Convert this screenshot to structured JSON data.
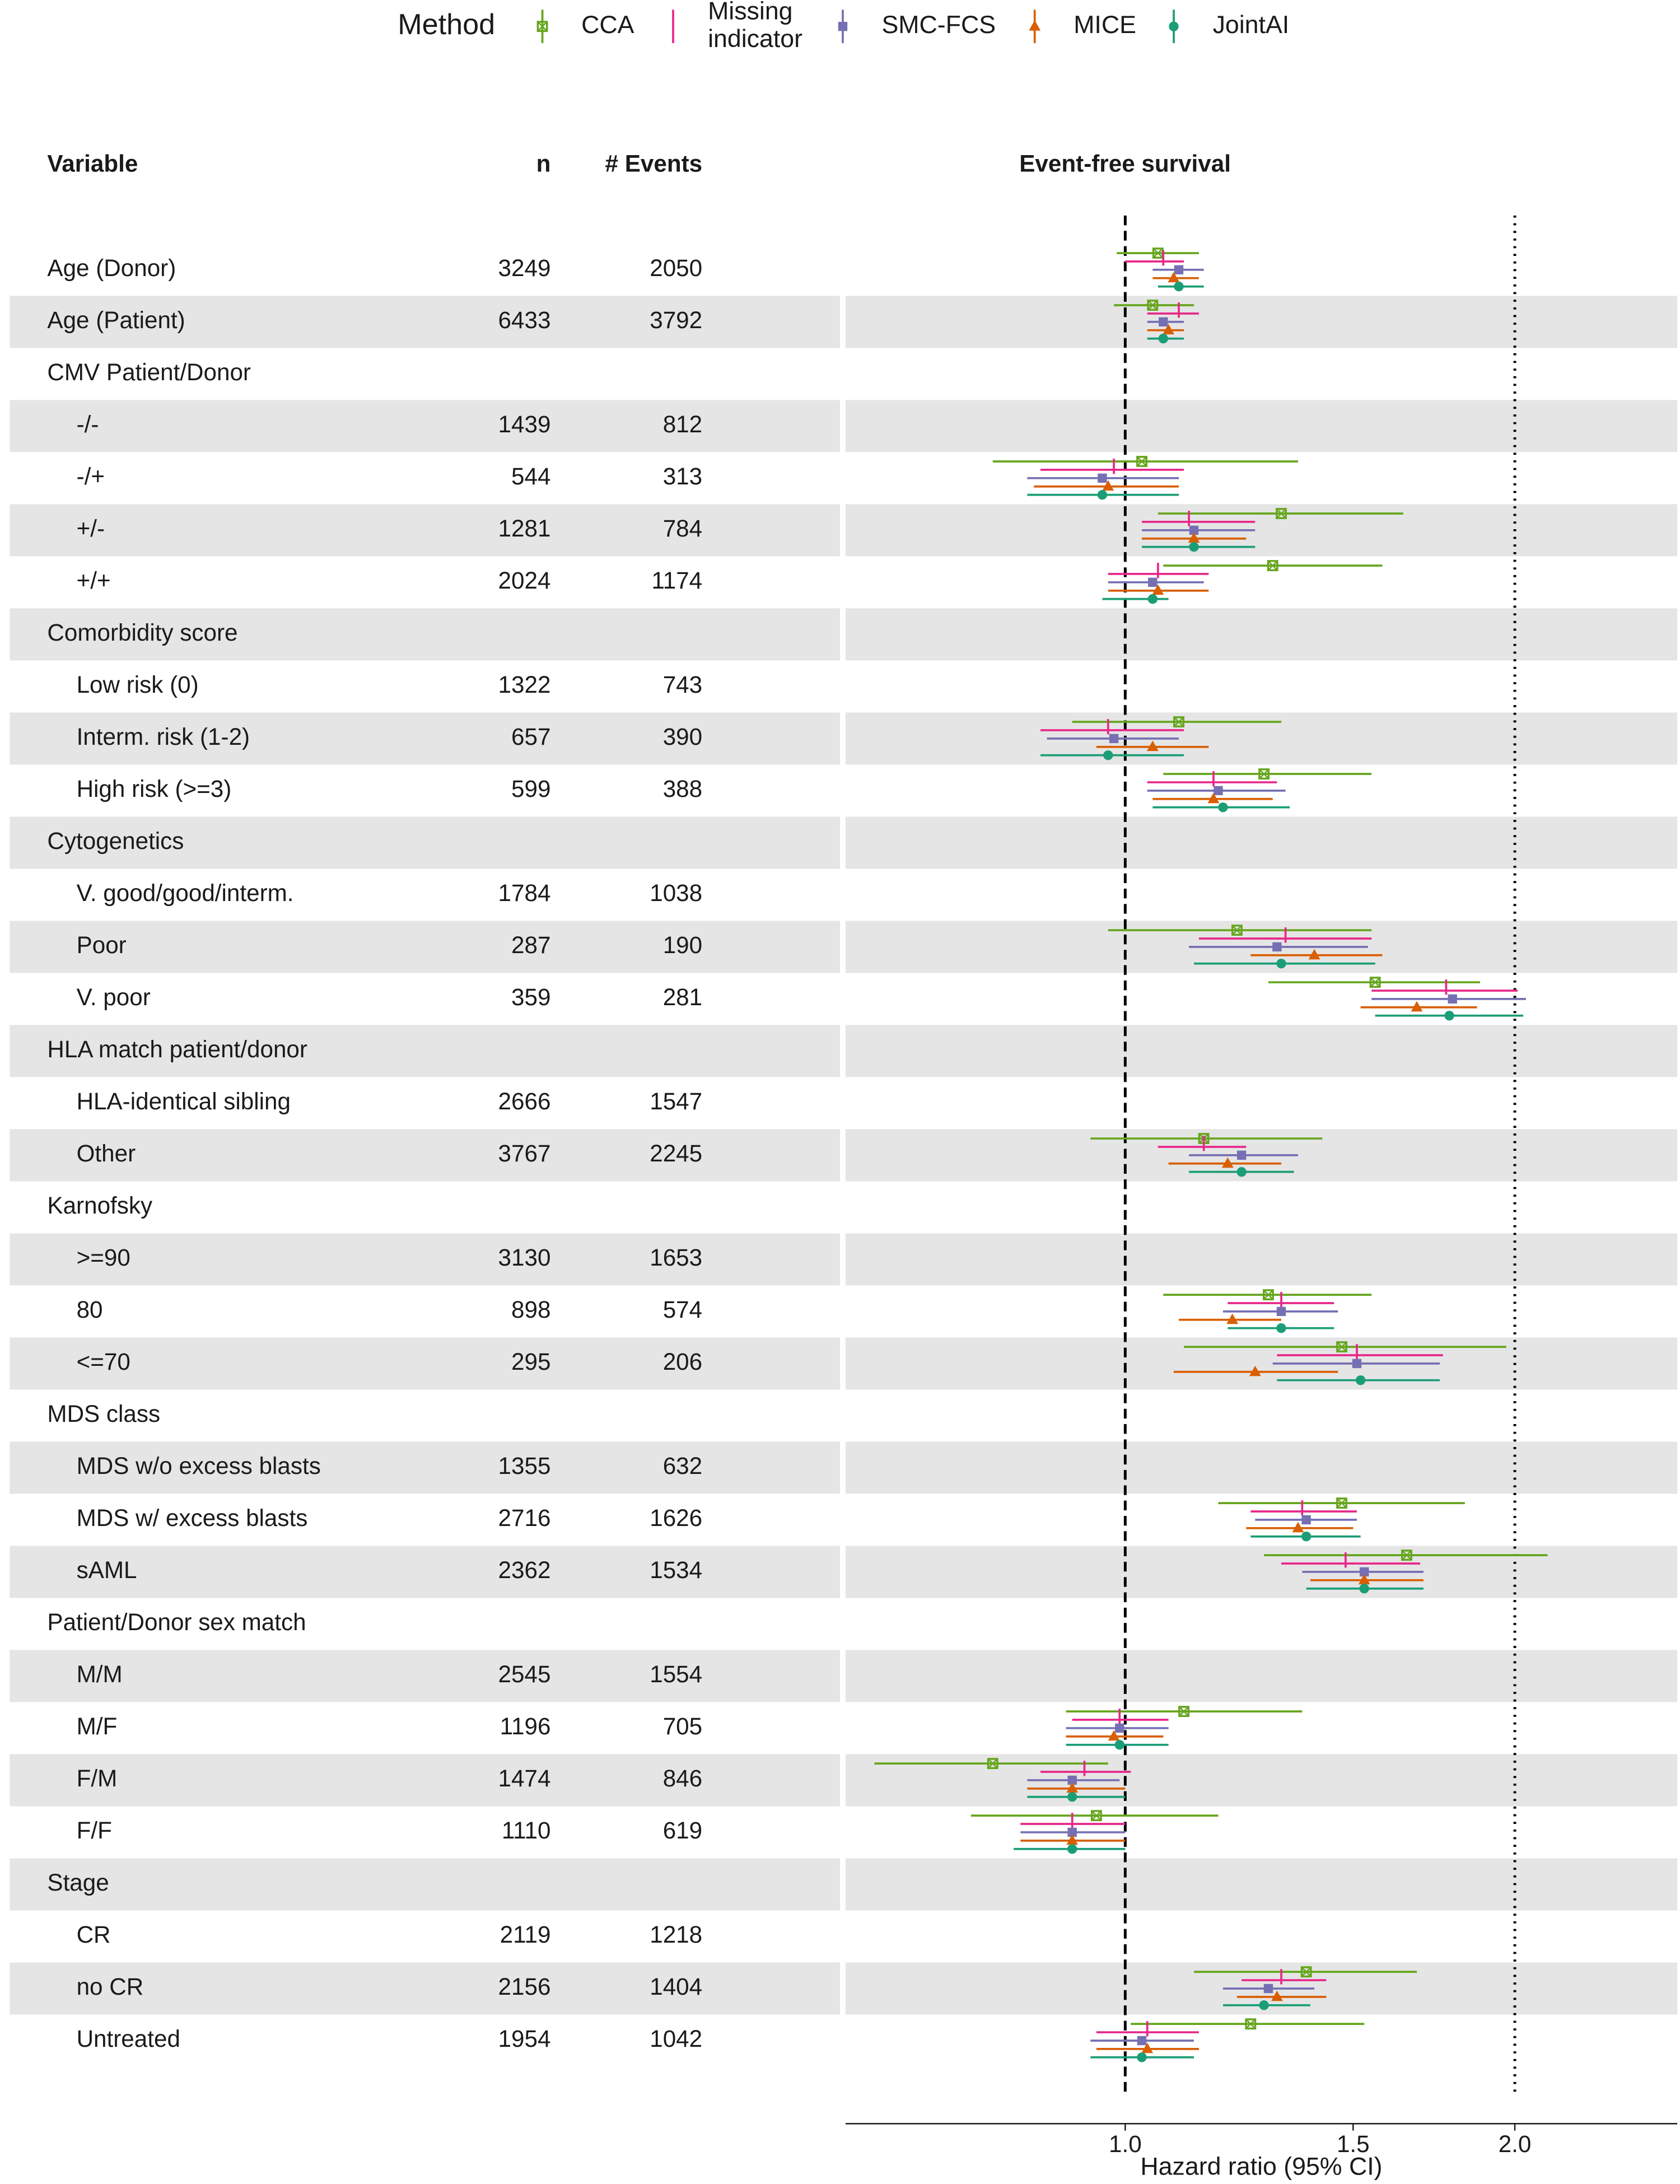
{
  "chart_data": {
    "type": "forest",
    "legend_title": "Method",
    "columns": [
      "Variable",
      "n",
      "# Events"
    ],
    "plot_title": "Event-free survival",
    "x_label": "Hazard ratio (95% CI)",
    "xscale": "log",
    "xlim": [
      0.608,
      2.67
    ],
    "xticks": [
      {
        "value": 1,
        "label": "1.0"
      },
      {
        "value": 1.5,
        "label": "1.5"
      },
      {
        "value": 2,
        "label": "2.0"
      }
    ],
    "reference_lines": [
      {
        "value": 1,
        "style": "dashed"
      },
      {
        "value": 2,
        "style": "dotted"
      }
    ],
    "striped_rows": true,
    "labels": [
      "Age (Donor)",
      "Age (Patient)",
      "CMV Patient/Donor",
      "-/-",
      "-/+",
      "+/-",
      "+/+",
      "Comorbidity score",
      "Low risk (0)",
      "Interm. risk (1-2)",
      "High risk (>=3)",
      "Cytogenetics",
      "V. good/good/interm.",
      "Poor",
      "V. poor",
      "HLA match patient/donor",
      "HLA-identical sibling",
      "Other",
      "Karnofsky",
      ">=90",
      "80",
      "<=70",
      "MDS class",
      "MDS w/o excess blasts",
      "MDS w/ excess blasts",
      "sAML",
      "Patient/Donor sex match",
      "M/M",
      "M/F",
      "F/M",
      "F/F",
      "Stage",
      "CR",
      "no CR",
      "Untreated"
    ],
    "n": [
      3249,
      6433,
      null,
      1439,
      544,
      1281,
      2024,
      null,
      1322,
      657,
      599,
      null,
      1784,
      287,
      359,
      null,
      2666,
      3767,
      null,
      3130,
      898,
      295,
      null,
      1355,
      2716,
      2362,
      null,
      2545,
      1196,
      1474,
      1110,
      null,
      2119,
      2156,
      1954
    ],
    "events": [
      2050,
      3792,
      null,
      812,
      313,
      784,
      1174,
      null,
      743,
      390,
      388,
      null,
      1038,
      190,
      281,
      null,
      1547,
      2245,
      null,
      1653,
      574,
      206,
      null,
      632,
      1626,
      1534,
      null,
      1554,
      705,
      846,
      619,
      null,
      1218,
      1404,
      1042
    ],
    "series": [
      {
        "name": "CCA",
        "color": "#66a61e",
        "marker": "boxed-square",
        "values": [
          1.06,
          1.05,
          null,
          null,
          1.03,
          1.32,
          1.3,
          null,
          null,
          1.1,
          1.28,
          null,
          null,
          1.22,
          1.56,
          null,
          null,
          1.15,
          null,
          null,
          1.29,
          1.47,
          null,
          null,
          1.47,
          1.65,
          null,
          null,
          1.11,
          0.79,
          0.95,
          null,
          null,
          1.38,
          1.25
        ],
        "lower": [
          0.985,
          0.98,
          null,
          null,
          0.79,
          1.06,
          1.07,
          null,
          null,
          0.91,
          1.07,
          null,
          null,
          0.97,
          1.29,
          null,
          null,
          0.94,
          null,
          null,
          1.07,
          1.11,
          null,
          null,
          1.18,
          1.28,
          null,
          null,
          0.9,
          0.64,
          0.76,
          null,
          null,
          1.13,
          1.01
        ],
        "upper": [
          1.14,
          1.13,
          null,
          null,
          1.36,
          1.64,
          1.58,
          null,
          null,
          1.32,
          1.55,
          null,
          null,
          1.55,
          1.88,
          null,
          null,
          1.42,
          null,
          null,
          1.55,
          1.97,
          null,
          null,
          1.83,
          2.12,
          null,
          null,
          1.37,
          0.97,
          1.18,
          null,
          null,
          1.68,
          1.53
        ]
      },
      {
        "name": "Missing indicator",
        "color": "#e7298a",
        "marker": "bar",
        "values": [
          1.07,
          1.1,
          null,
          null,
          0.98,
          1.12,
          1.06,
          null,
          null,
          0.97,
          1.17,
          null,
          null,
          1.33,
          1.77,
          null,
          null,
          1.15,
          null,
          null,
          1.32,
          1.51,
          null,
          null,
          1.37,
          1.48,
          null,
          null,
          0.99,
          0.93,
          0.91,
          null,
          null,
          1.32,
          1.04
        ],
        "lower": [
          1.0,
          1.04,
          null,
          null,
          0.86,
          1.03,
          0.97,
          null,
          null,
          0.86,
          1.04,
          null,
          null,
          1.14,
          1.55,
          null,
          null,
          1.06,
          null,
          null,
          1.2,
          1.31,
          null,
          null,
          1.25,
          1.32,
          null,
          null,
          0.91,
          0.86,
          0.83,
          null,
          null,
          1.23,
          0.95
        ],
        "upper": [
          1.11,
          1.14,
          null,
          null,
          1.11,
          1.26,
          1.16,
          null,
          null,
          1.11,
          1.31,
          null,
          null,
          1.55,
          2.01,
          null,
          null,
          1.24,
          null,
          null,
          1.45,
          1.76,
          null,
          null,
          1.51,
          1.69,
          null,
          null,
          1.08,
          1.01,
          1.0,
          null,
          null,
          1.43,
          1.14
        ]
      },
      {
        "name": "SMC-FCS",
        "color": "#7570b3",
        "marker": "square",
        "values": [
          1.1,
          1.07,
          null,
          null,
          0.96,
          1.13,
          1.05,
          null,
          null,
          0.98,
          1.18,
          null,
          null,
          1.31,
          1.79,
          null,
          null,
          1.23,
          null,
          null,
          1.32,
          1.51,
          null,
          null,
          1.38,
          1.53,
          null,
          null,
          0.99,
          0.91,
          0.91,
          null,
          null,
          1.29,
          1.03
        ],
        "lower": [
          1.05,
          1.04,
          null,
          null,
          0.84,
          1.03,
          0.97,
          null,
          null,
          0.87,
          1.04,
          null,
          null,
          1.12,
          1.55,
          null,
          null,
          1.12,
          null,
          null,
          1.19,
          1.3,
          null,
          null,
          1.26,
          1.37,
          null,
          null,
          0.9,
          0.84,
          0.83,
          null,
          null,
          1.19,
          0.94
        ],
        "upper": [
          1.15,
          1.11,
          null,
          null,
          1.1,
          1.26,
          1.15,
          null,
          null,
          1.1,
          1.33,
          null,
          null,
          1.54,
          2.04,
          null,
          null,
          1.36,
          null,
          null,
          1.46,
          1.75,
          null,
          null,
          1.51,
          1.7,
          null,
          null,
          1.08,
          0.99,
          1.0,
          null,
          null,
          1.4,
          1.13
        ]
      },
      {
        "name": "MICE",
        "color": "#d95f02",
        "marker": "triangle",
        "values": [
          1.09,
          1.08,
          null,
          null,
          0.97,
          1.13,
          1.06,
          null,
          null,
          1.05,
          1.17,
          null,
          null,
          1.4,
          1.68,
          null,
          null,
          1.2,
          null,
          null,
          1.21,
          1.26,
          null,
          null,
          1.36,
          1.53,
          null,
          null,
          0.98,
          0.91,
          0.91,
          null,
          null,
          1.31,
          1.04
        ],
        "lower": [
          1.05,
          1.04,
          null,
          null,
          0.85,
          1.03,
          0.97,
          null,
          null,
          0.95,
          1.05,
          null,
          null,
          1.25,
          1.52,
          null,
          null,
          1.08,
          null,
          null,
          1.1,
          1.09,
          null,
          null,
          1.24,
          1.39,
          null,
          null,
          0.9,
          0.84,
          0.83,
          null,
          null,
          1.22,
          0.95
        ],
        "upper": [
          1.14,
          1.11,
          null,
          null,
          1.1,
          1.24,
          1.16,
          null,
          null,
          1.16,
          1.3,
          null,
          null,
          1.58,
          1.87,
          null,
          null,
          1.32,
          null,
          null,
          1.32,
          1.46,
          null,
          null,
          1.5,
          1.7,
          null,
          null,
          1.07,
          1.0,
          1.0,
          null,
          null,
          1.43,
          1.14
        ]
      },
      {
        "name": "JointAI",
        "color": "#1b9e77",
        "marker": "circle",
        "values": [
          1.1,
          1.07,
          null,
          null,
          0.96,
          1.13,
          1.05,
          null,
          null,
          0.97,
          1.19,
          null,
          null,
          1.32,
          1.78,
          null,
          null,
          1.23,
          null,
          null,
          1.32,
          1.52,
          null,
          null,
          1.38,
          1.53,
          null,
          null,
          0.99,
          0.91,
          0.91,
          null,
          null,
          1.28,
          1.03
        ],
        "lower": [
          1.06,
          1.04,
          null,
          null,
          0.84,
          1.03,
          0.96,
          null,
          null,
          0.86,
          1.05,
          null,
          null,
          1.13,
          1.56,
          null,
          null,
          1.12,
          null,
          null,
          1.2,
          1.31,
          null,
          null,
          1.25,
          1.38,
          null,
          null,
          0.9,
          0.84,
          0.82,
          null,
          null,
          1.19,
          0.94
        ],
        "upper": [
          1.15,
          1.11,
          null,
          null,
          1.1,
          1.26,
          1.08,
          null,
          null,
          1.11,
          1.34,
          null,
          null,
          1.56,
          2.03,
          null,
          null,
          1.35,
          null,
          null,
          1.45,
          1.75,
          null,
          null,
          1.52,
          1.7,
          null,
          null,
          1.08,
          1.0,
          1.0,
          null,
          null,
          1.39,
          1.13
        ]
      }
    ]
  }
}
